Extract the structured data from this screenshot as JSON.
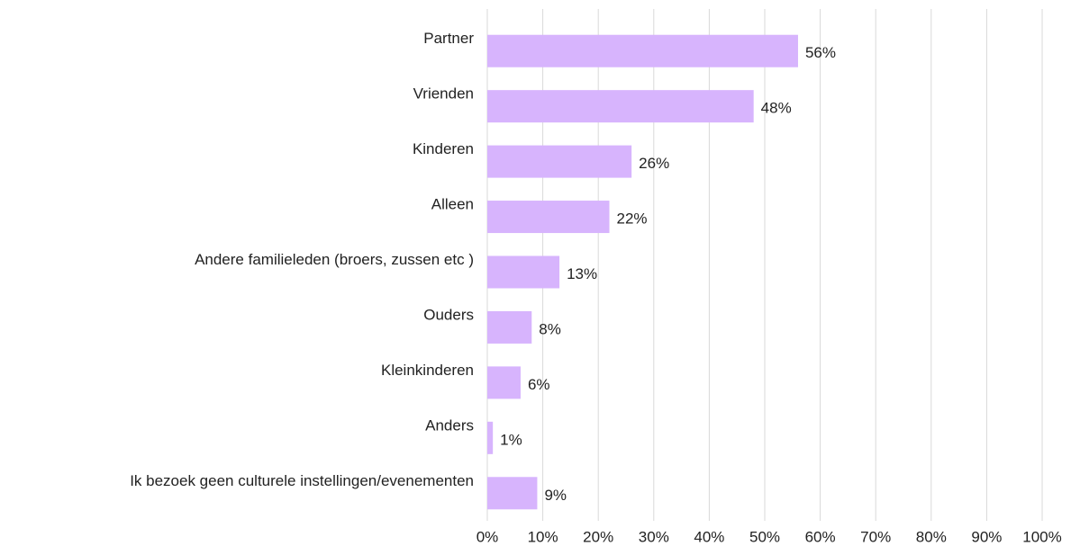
{
  "chart_data": {
    "type": "bar",
    "orientation": "horizontal",
    "categories": [
      "Partner",
      "Vrienden",
      "Kinderen",
      "Alleen",
      "Andere familieleden (broers, zussen etc )",
      "Ouders",
      "Kleinkinderen",
      "Anders",
      "Ik bezoek geen culturele instellingen/evenementen"
    ],
    "values": [
      56,
      48,
      26,
      22,
      13,
      8,
      6,
      1,
      9
    ],
    "value_labels": [
      "56%",
      "48%",
      "26%",
      "22%",
      "13%",
      "8%",
      "6%",
      "1%",
      "9%"
    ],
    "color": "#d7b4fd",
    "xlim": [
      0,
      100
    ],
    "xticks": [
      {
        "value": 0,
        "label": "0%"
      },
      {
        "value": 10,
        "label": "10%"
      },
      {
        "value": 20,
        "label": "20%"
      },
      {
        "value": 30,
        "label": "30%"
      },
      {
        "value": 40,
        "label": "40%"
      },
      {
        "value": 50,
        "label": "50%"
      },
      {
        "value": 60,
        "label": "60%"
      },
      {
        "value": 70,
        "label": "70%"
      },
      {
        "value": 80,
        "label": "80%"
      },
      {
        "value": 90,
        "label": "90%"
      },
      {
        "value": 100,
        "label": "100%"
      }
    ],
    "grid": true
  }
}
